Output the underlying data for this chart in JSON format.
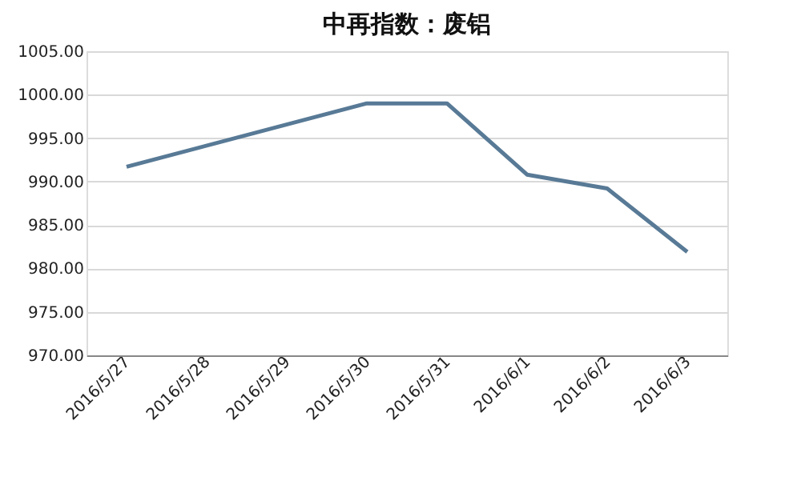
{
  "chart_data": {
    "type": "line",
    "title": "中再指数：废铝",
    "categories": [
      "2016/5/27",
      "2016/5/28",
      "2016/5/29",
      "2016/5/30",
      "2016/5/31",
      "2016/6/1",
      "2016/6/2",
      "2016/6/3"
    ],
    "series": [
      {
        "color": "#587a96",
        "values": [
          991.7,
          null,
          null,
          999.0,
          999.0,
          990.8,
          989.2,
          981.9
        ]
      }
    ],
    "ylim": [
      970,
      1005
    ],
    "yticks": [
      {
        "value": 970,
        "label": "970.00"
      },
      {
        "value": 975,
        "label": "975.00"
      },
      {
        "value": 980,
        "label": "980.00"
      },
      {
        "value": 985,
        "label": "985.00"
      },
      {
        "value": 990,
        "label": "990.00"
      },
      {
        "value": 995,
        "label": "995.00"
      },
      {
        "value": 1000,
        "label": "1000.00"
      },
      {
        "value": 1005,
        "label": "1005.00"
      }
    ],
    "grid": "y",
    "marker": "none",
    "line_style": "solid"
  }
}
